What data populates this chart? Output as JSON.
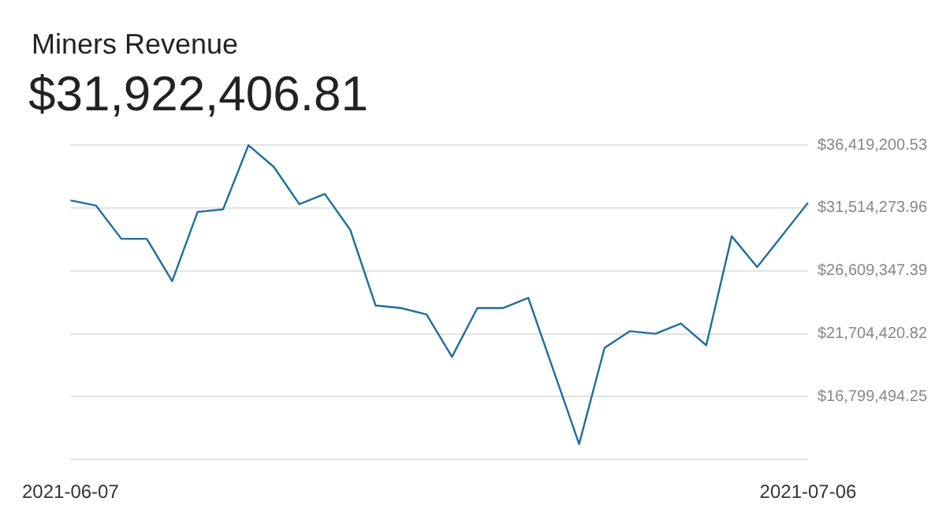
{
  "chart_data": {
    "type": "line",
    "title": "Miners Revenue",
    "subtitle": "$31,922,406.81",
    "categories": [
      "2021-06-07",
      null,
      null,
      null,
      null,
      null,
      null,
      null,
      null,
      null,
      null,
      null,
      null,
      null,
      null,
      null,
      null,
      null,
      null,
      null,
      null,
      null,
      null,
      null,
      null,
      null,
      null,
      null,
      null,
      "2021-07-06"
    ],
    "series": [
      {
        "color": "#1f6e9c",
        "values": [
          32100000,
          31700000,
          29100000,
          29100000,
          25800000,
          31200000,
          31400000,
          36400000,
          34700000,
          31800000,
          32600000,
          29800000,
          23900000,
          23700000,
          23200000,
          19900000,
          23700000,
          23700000,
          24500000,
          18800000,
          13100000,
          20600000,
          21900000,
          21700000,
          22500000,
          20800000,
          29300000,
          26900000,
          29400000,
          31922406.81
        ]
      }
    ],
    "ylim": [
      11894567.68,
      36419200.53
    ],
    "yticks": [
      {
        "value": 11894567.68,
        "label": null
      },
      {
        "value": 16799494.25,
        "label": "$16,799,494.25"
      },
      {
        "value": 21704420.82,
        "label": "$21,704,420.82"
      },
      {
        "value": 26609347.39,
        "label": "$26,609,347.39"
      },
      {
        "value": 31514273.96,
        "label": "$31,514,273.96"
      },
      {
        "value": 36419200.53,
        "label": "$36,419,200.53"
      }
    ],
    "grid": "y",
    "legend": false,
    "marker": "none",
    "line_style": "solid"
  }
}
